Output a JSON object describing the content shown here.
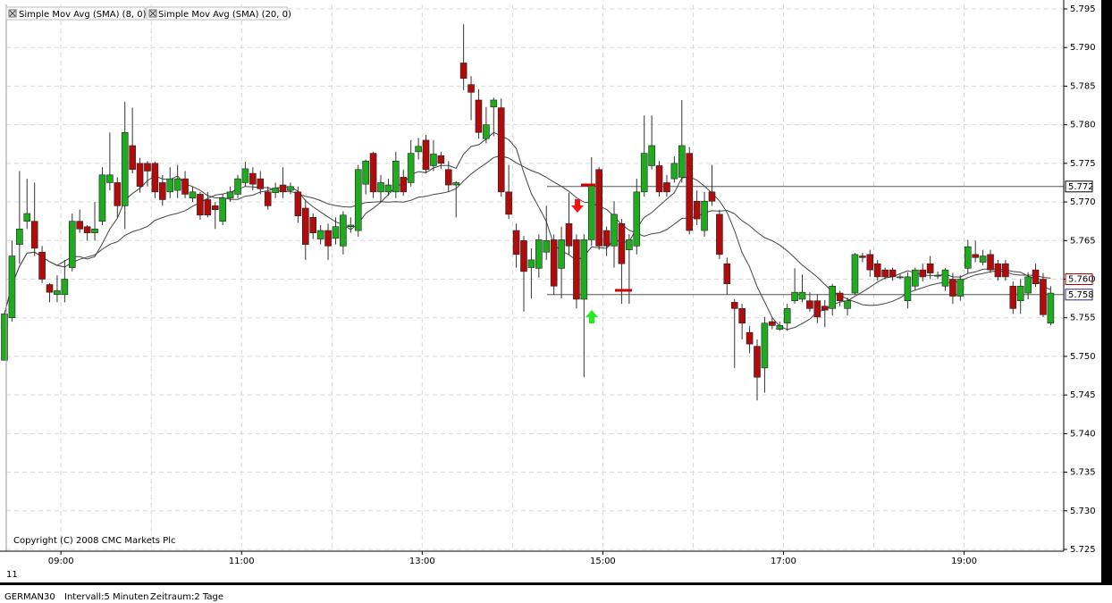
{
  "chart_data": {
    "type": "candlestick",
    "indicators": [
      {
        "name": "Simple Mov Avg (SMA) (8, 0)",
        "period": 8,
        "color": "#444444"
      },
      {
        "name": "Simple Mov Avg (SMA) (20, 0)",
        "period": 20,
        "color": "#444444"
      }
    ],
    "copyright": "Copyright (C) 2008 CMC Markets Plc",
    "x_axis_date": "11",
    "footer": [
      "GERMAN30",
      "Intervall:5 Minuten",
      "Zeitraum:2 Tage"
    ],
    "up_color": "#1faa1f",
    "down_color": "#b00c0c",
    "grid": true,
    "ylim": [
      5.725,
      5.795
    ],
    "yticks": [
      5.725,
      {
        "value": 5.73,
        "label": "5.730"
      },
      5.735,
      {
        "value": 5.74,
        "label": "5.740"
      },
      5.745,
      {
        "value": 5.75,
        "label": "5.750"
      },
      5.755,
      {
        "value": 5.76,
        "label": "5.760"
      },
      5.765,
      {
        "value": 5.77,
        "label": "5.770"
      },
      5.775,
      {
        "value": 5.78,
        "label": "5.780"
      },
      5.785,
      {
        "value": 5.79,
        "label": "5.790"
      },
      5.795
    ],
    "price_markers": [
      {
        "value": 5.772,
        "color": "#000000",
        "line": true
      },
      {
        "value": 5.76,
        "label": "5.760",
        "color": "#b00000",
        "line": false
      },
      {
        "value": 5.758,
        "color": "#332277",
        "line": true
      }
    ],
    "categories": [
      null,
      null,
      null,
      null,
      null,
      null,
      null,
      null,
      "09:00",
      null,
      null,
      null,
      null,
      null,
      null,
      null,
      null,
      null,
      null,
      null,
      null,
      null,
      null,
      null,
      null,
      null,
      null,
      null,
      null,
      null,
      null,
      null,
      "11:00",
      null,
      null,
      null,
      null,
      null,
      null,
      null,
      null,
      null,
      null,
      null,
      null,
      null,
      null,
      null,
      null,
      null,
      null,
      null,
      null,
      null,
      null,
      null,
      "13:00",
      null,
      null,
      null,
      null,
      null,
      null,
      null,
      null,
      null,
      null,
      null,
      null,
      null,
      null,
      null,
      null,
      null,
      null,
      null,
      null,
      null,
      null,
      null,
      "15:00",
      null,
      null,
      null,
      null,
      null,
      null,
      null,
      null,
      null,
      null,
      null,
      null,
      null,
      null,
      null,
      null,
      null,
      null,
      null,
      null,
      null,
      null,
      null,
      "17:00",
      null,
      null,
      null,
      null,
      null,
      null,
      null,
      null,
      null,
      null,
      null,
      null,
      null,
      null,
      null,
      null,
      null,
      null,
      null,
      null,
      null,
      null,
      null,
      "19:00",
      null,
      null,
      null,
      null,
      null,
      null,
      null,
      null,
      null,
      null,
      null
    ],
    "open": [
      5.7495,
      5.755,
      5.7645,
      5.7675,
      5.7675,
      5.7635,
      5.7593,
      5.758,
      5.758,
      5.7615,
      5.7675,
      5.7668,
      5.766,
      5.7675,
      5.7725,
      5.7725,
      5.7695,
      5.7773,
      5.775,
      5.775,
      5.775,
      5.7725,
      5.7713,
      5.7715,
      5.773,
      5.7705,
      5.771,
      5.7703,
      5.7695,
      5.7675,
      5.7705,
      5.771,
      5.7725,
      5.7737,
      5.773,
      5.7713,
      5.7712,
      5.7722,
      5.7715,
      5.7713,
      5.7692,
      5.768,
      5.7652,
      5.7663,
      5.7653,
      5.7643,
      5.7668,
      5.7663,
      5.7723,
      5.7763,
      5.7713,
      5.7713,
      5.7713,
      5.7732,
      5.7725,
      5.7765,
      5.778,
      5.7747,
      5.776,
      5.7742,
      5.7722,
      5.788,
      5.7852,
      5.7832,
      5.7782,
      5.7823,
      5.7822,
      5.7713,
      5.7663,
      5.765,
      5.7615,
      5.7614,
      5.7635,
      5.7651,
      5.7614,
      5.7672,
      5.7651,
      5.7574,
      5.7651,
      5.7742,
      5.7663,
      5.7643,
      5.7672,
      5.7638,
      5.7643,
      5.7713,
      5.7747,
      5.7747,
      5.7725,
      5.773,
      5.7732,
      5.7763,
      5.7701,
      5.7663,
      5.7713,
      5.7684,
      5.762,
      5.757,
      5.7562,
      5.7531,
      5.7513,
      5.7485,
      5.7545,
      5.7535,
      5.7543,
      5.7572,
      5.7574,
      5.7572,
      5.7572,
      5.7565,
      5.7562,
      5.7582,
      5.7562,
      5.7582,
      5.763,
      5.7632,
      5.762,
      5.7612,
      5.7612,
      5.7603,
      5.7572,
      5.7591,
      5.7612,
      5.762,
      5.7605,
      5.7591,
      5.76,
      5.7578,
      5.7614,
      5.7632,
      5.7622,
      5.7632,
      5.762,
      5.762,
      5.7591,
      5.7572,
      5.7582,
      5.7612,
      5.76,
      5.7543
    ],
    "high": [
      5.7555,
      5.765,
      5.774,
      5.773,
      5.7725,
      5.7643,
      5.7595,
      5.7605,
      5.7625,
      5.7685,
      5.769,
      5.767,
      5.77,
      5.7745,
      5.779,
      5.7732,
      5.783,
      5.7822,
      5.7757,
      5.7753,
      5.7752,
      5.7735,
      5.7745,
      5.7748,
      5.774,
      5.772,
      5.7713,
      5.7713,
      5.77,
      5.771,
      5.772,
      5.7735,
      5.7752,
      5.7745,
      5.774,
      5.772,
      5.7725,
      5.7745,
      5.7725,
      5.772,
      5.7703,
      5.7685,
      5.767,
      5.7672,
      5.768,
      5.7688,
      5.768,
      5.7748,
      5.7755,
      5.7765,
      5.7735,
      5.773,
      5.7765,
      5.7742,
      5.778,
      5.7783,
      5.7787,
      5.778,
      5.7765,
      5.7753,
      5.7727,
      5.793,
      5.7863,
      5.7846,
      5.7823,
      5.7835,
      5.7834,
      5.7748,
      5.7672,
      5.7656,
      5.764,
      5.7658,
      5.7695,
      5.7658,
      5.7668,
      5.7712,
      5.7658,
      5.7658,
      5.7758,
      5.7745,
      5.7668,
      5.7701,
      5.7678,
      5.7658,
      5.773,
      5.7812,
      5.7812,
      5.7753,
      5.7735,
      5.7759,
      5.7832,
      5.7771,
      5.7715,
      5.7713,
      5.7748,
      5.769,
      5.7628,
      5.7574,
      5.7568,
      5.7539,
      5.7522,
      5.7551,
      5.755,
      5.7545,
      5.7568,
      5.7614,
      5.7606,
      5.7583,
      5.758,
      5.7573,
      5.7594,
      5.7585,
      5.7576,
      5.7634,
      5.7634,
      5.7638,
      5.7625,
      5.7615,
      5.7615,
      5.7606,
      5.7609,
      5.7615,
      5.762,
      5.763,
      5.761,
      5.7614,
      5.7608,
      5.7605,
      5.7651,
      5.765,
      5.7638,
      5.7638,
      5.7625,
      5.7625,
      5.7597,
      5.76,
      5.7609,
      5.762,
      5.7608,
      5.7591
    ],
    "low": [
      5.7495,
      5.7545,
      5.762,
      5.7665,
      5.763,
      5.7595,
      5.757,
      5.757,
      5.757,
      5.761,
      5.766,
      5.765,
      5.765,
      5.767,
      5.7715,
      5.768,
      5.7665,
      5.7737,
      5.7712,
      5.772,
      5.7705,
      5.7695,
      5.7705,
      5.7705,
      5.7705,
      5.77,
      5.7677,
      5.768,
      5.7665,
      5.767,
      5.77,
      5.7705,
      5.772,
      5.7715,
      5.771,
      5.769,
      5.7705,
      5.7705,
      5.771,
      5.7673,
      5.7625,
      5.7652,
      5.7645,
      5.7625,
      5.7645,
      5.7632,
      5.766,
      5.7655,
      5.771,
      5.7705,
      5.77,
      5.7708,
      5.7705,
      5.7708,
      5.772,
      5.7755,
      5.7737,
      5.774,
      5.7743,
      5.7713,
      5.768,
      5.7845,
      5.7806,
      5.7782,
      5.7776,
      5.7785,
      5.7707,
      5.7678,
      5.7615,
      5.7558,
      5.7575,
      5.7602,
      5.7625,
      5.758,
      5.7575,
      5.7632,
      5.7562,
      5.7473,
      5.7643,
      5.7638,
      5.763,
      5.7615,
      5.7568,
      5.7568,
      5.7632,
      5.7707,
      5.7742,
      5.7707,
      5.7707,
      5.7725,
      5.7725,
      5.7658,
      5.767,
      5.7655,
      5.7695,
      5.7626,
      5.758,
      5.7485,
      5.7522,
      5.7504,
      5.7443,
      5.7453,
      5.7535,
      5.7533,
      5.7533,
      5.7568,
      5.757,
      5.7558,
      5.7543,
      5.7538,
      5.7553,
      5.7565,
      5.7553,
      5.758,
      5.7622,
      5.7603,
      5.7598,
      5.76,
      5.7598,
      5.76,
      5.7562,
      5.7585,
      5.7597,
      5.76,
      5.76,
      5.7585,
      5.7568,
      5.7572,
      5.7608,
      5.7622,
      5.7618,
      5.7608,
      5.7598,
      5.7598,
      5.7555,
      5.7555,
      5.7574,
      5.759,
      5.7551,
      5.754
    ],
    "close": [
      5.7555,
      5.763,
      5.7665,
      5.7685,
      5.764,
      5.76,
      5.7583,
      5.7585,
      5.76,
      5.7675,
      5.7665,
      5.766,
      5.7665,
      5.7735,
      5.7735,
      5.7695,
      5.779,
      5.7742,
      5.772,
      5.774,
      5.7713,
      5.7703,
      5.773,
      5.773,
      5.771,
      5.7713,
      5.7683,
      5.7683,
      5.769,
      5.7705,
      5.7713,
      5.773,
      5.7743,
      5.7723,
      5.7717,
      5.7695,
      5.7718,
      5.7713,
      5.772,
      5.7682,
      5.7645,
      5.766,
      5.7663,
      5.7643,
      5.7668,
      5.7683,
      5.767,
      5.7742,
      5.7753,
      5.7713,
      5.7725,
      5.7722,
      5.7753,
      5.7713,
      5.7763,
      5.7772,
      5.7742,
      5.7762,
      5.775,
      5.7722,
      5.7725,
      5.786,
      5.7842,
      5.779,
      5.78,
      5.7832,
      5.7713,
      5.7684,
      5.7632,
      5.761,
      5.7625,
      5.7651,
      5.765,
      5.7591,
      5.7651,
      5.7643,
      5.7574,
      5.7651,
      5.7723,
      5.7643,
      5.7643,
      5.7684,
      5.762,
      5.7651,
      5.7713,
      5.7763,
      5.7773,
      5.7713,
      5.7713,
      5.775,
      5.7773,
      5.7663,
      5.7678,
      5.7701,
      5.7701,
      5.7632,
      5.7594,
      5.7562,
      5.7543,
      5.7516,
      5.7473,
      5.7543,
      5.754,
      5.754,
      5.7562,
      5.7583,
      5.7583,
      5.7562,
      5.7551,
      5.756,
      5.7591,
      5.7572,
      5.7572,
      5.7632,
      5.7628,
      5.7612,
      5.7603,
      5.7603,
      5.7603,
      5.7603,
      5.7603,
      5.7612,
      5.7603,
      5.7608,
      5.7605,
      5.7612,
      5.7578,
      5.76,
      5.7642,
      5.7628,
      5.763,
      5.7612,
      5.7603,
      5.7603,
      5.7562,
      5.7591,
      5.7603,
      5.7594,
      5.7554,
      5.7582
    ]
  }
}
